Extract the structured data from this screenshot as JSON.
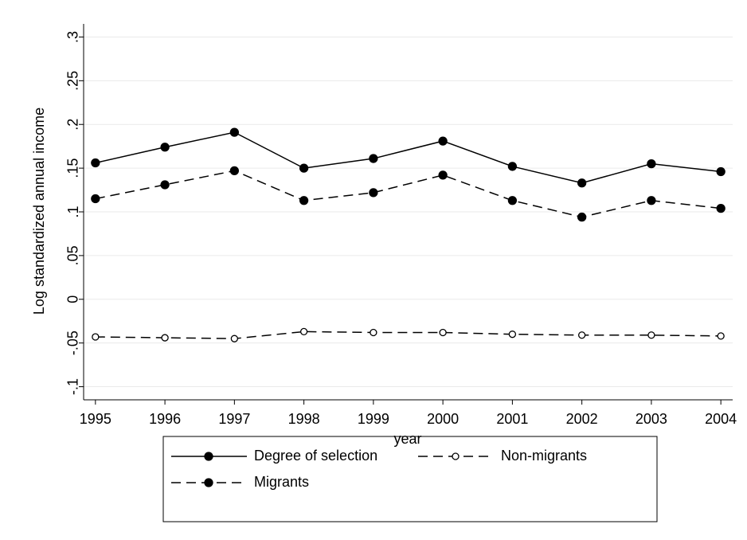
{
  "chart_data": {
    "type": "line",
    "y_label": "Log standardized annual income",
    "x_label": "year",
    "x": [
      1995,
      1996,
      1997,
      1998,
      1999,
      2000,
      2001,
      2002,
      2003,
      2004
    ],
    "xlim": [
      1994.83,
      2004.17
    ],
    "xticks": [
      1995,
      1996,
      1997,
      1998,
      1999,
      2000,
      2001,
      2002,
      2003,
      2004
    ],
    "ylim": [
      -0.115,
      0.315
    ],
    "yticks": [
      {
        "value": 0.3,
        "label": ".3"
      },
      {
        "value": 0.25,
        "label": ".25"
      },
      {
        "value": 0.2,
        "label": ".2"
      },
      {
        "value": 0.15,
        "label": ".15"
      },
      {
        "value": 0.1,
        "label": ".1"
      },
      {
        "value": 0.05,
        "label": ".05"
      },
      0,
      {
        "value": -0.05,
        "label": "-.05"
      },
      {
        "value": -0.1,
        "label": "-.1"
      }
    ],
    "grid": true,
    "series": [
      {
        "name": "Degree of selection",
        "color": "#000000",
        "dashed": false,
        "marker": "filled",
        "values": [
          0.156,
          0.174,
          0.191,
          0.15,
          0.161,
          0.181,
          0.152,
          0.133,
          0.155,
          0.146
        ]
      },
      {
        "name": "Non-migrants",
        "color": "#000000",
        "dashed": true,
        "marker": "hollow",
        "values": [
          -0.043,
          -0.044,
          -0.045,
          -0.037,
          -0.038,
          -0.038,
          -0.04,
          -0.041,
          -0.041,
          -0.042
        ]
      },
      {
        "name": "Migrants",
        "color": "#000000",
        "dashed": true,
        "marker": "filled",
        "values": [
          0.115,
          0.131,
          0.147,
          0.113,
          0.122,
          0.142,
          0.113,
          0.094,
          0.113,
          0.104
        ]
      }
    ]
  }
}
